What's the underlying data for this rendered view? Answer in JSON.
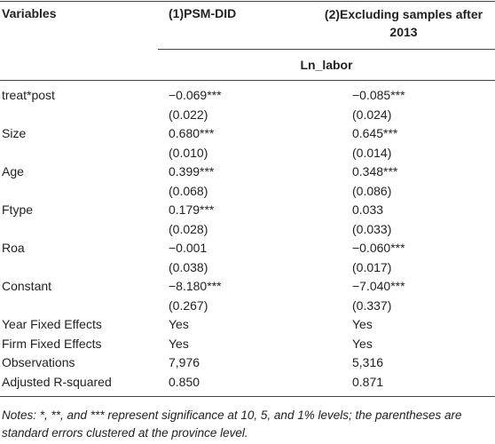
{
  "table": {
    "header": [
      "Variables",
      "(1)PSM-DID",
      "(2)Excluding samples after 2013"
    ],
    "subheader": "Ln_labor",
    "rows": [
      {
        "variable": "treat*post",
        "values": [
          "−0.069***",
          "−0.085***"
        ],
        "se": [
          "(0.022)",
          "(0.024)"
        ]
      },
      {
        "variable": "Size",
        "values": [
          "0.680***",
          "0.645***"
        ],
        "se": [
          "(0.010)",
          "(0.014)"
        ]
      },
      {
        "variable": "Age",
        "values": [
          "0.399***",
          "0.348***"
        ],
        "se": [
          "(0.068)",
          "(0.086)"
        ]
      },
      {
        "variable": "Ftype",
        "values": [
          "0.179***",
          "0.033"
        ],
        "se": [
          "(0.028)",
          "(0.033)"
        ]
      },
      {
        "variable": "Roa",
        "values": [
          "−0.001",
          "−0.060***"
        ],
        "se": [
          "(0.038)",
          "(0.017)"
        ]
      },
      {
        "variable": "Constant",
        "values": [
          "−8.180***",
          "−7.040***"
        ],
        "se": [
          "(0.267)",
          "(0.337)"
        ]
      },
      {
        "variable": "Year Fixed Effects",
        "values": [
          "Yes",
          "Yes"
        ]
      },
      {
        "variable": "Firm Fixed Effects",
        "values": [
          "Yes",
          "Yes"
        ]
      },
      {
        "variable": "Observations",
        "values": [
          "7,976",
          "5,316"
        ]
      },
      {
        "variable": "Adjusted R-squared",
        "values": [
          "0.850",
          "0.871"
        ]
      }
    ],
    "notes": "Notes: *, **, and *** represent significance at 10, 5, and 1% levels; the parentheses are standard errors clustered at the province level."
  }
}
